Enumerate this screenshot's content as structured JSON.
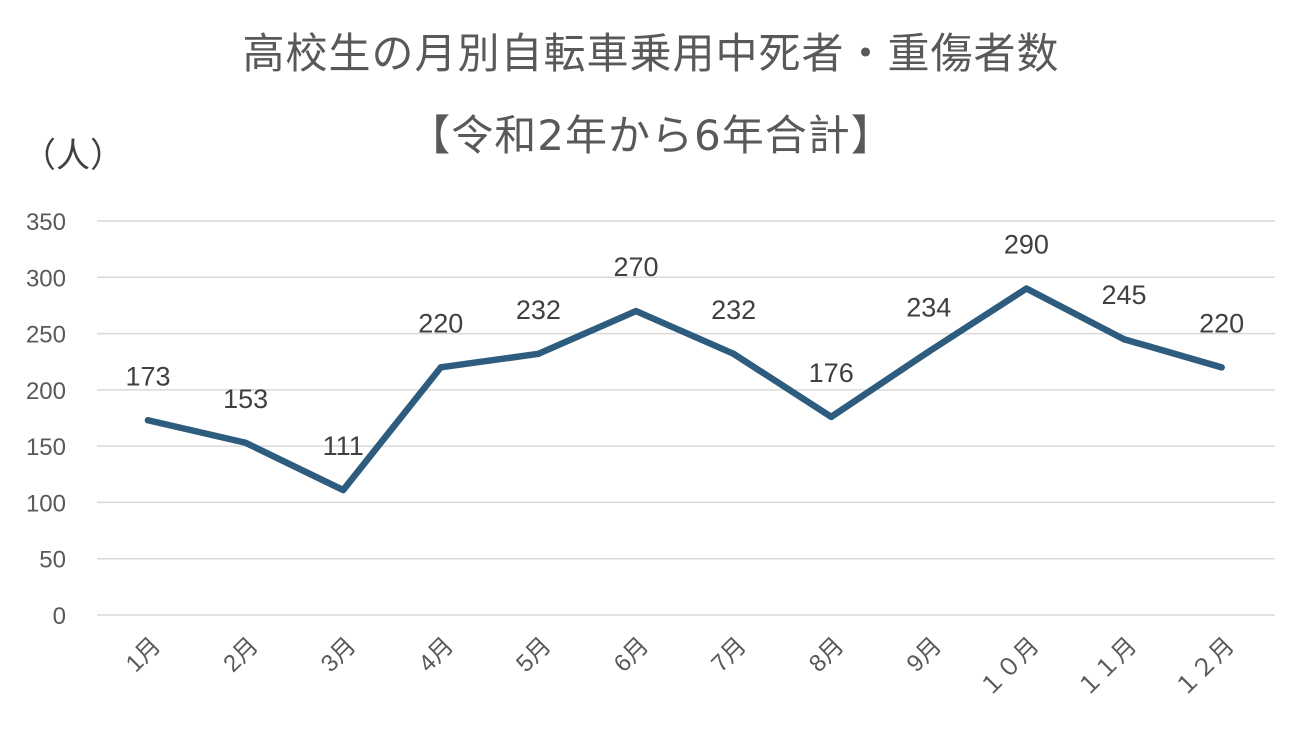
{
  "chart_data": {
    "type": "line",
    "title_line1": "高校生の月別自転車乗用中死者・重傷者数",
    "title_line2": "【令和2年から6年合計】",
    "ylabel": "（人）",
    "xlabel": "",
    "categories": [
      "1月",
      "2月",
      "3月",
      "4月",
      "5月",
      "6月",
      "7月",
      "8月",
      "9月",
      "１０月",
      "１１月",
      "１２月"
    ],
    "series": [
      {
        "values": [
          173,
          153,
          111,
          220,
          232,
          270,
          232,
          176,
          234,
          290,
          245,
          220
        ]
      }
    ],
    "y_ticks": [
      "0",
      "50",
      "100",
      "150",
      "200",
      "250",
      "300",
      "350"
    ],
    "ylim": [
      0,
      350
    ],
    "grid": true,
    "legend": "none",
    "data_labels": true,
    "colors": {
      "line": "#2e5c7e",
      "grid": "#d9d9d9"
    }
  }
}
